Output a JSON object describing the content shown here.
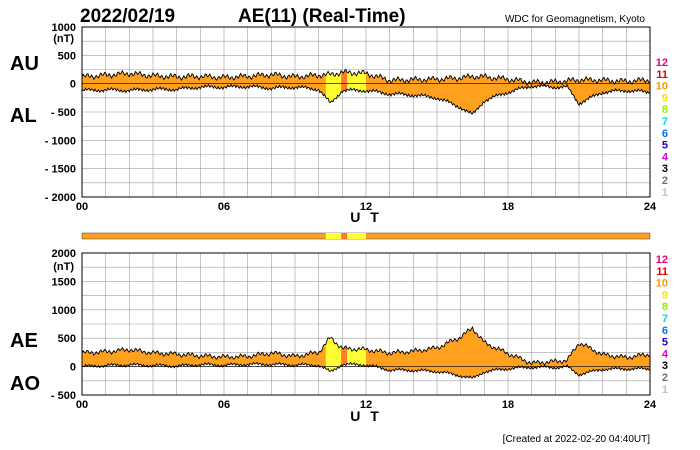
{
  "header": {
    "date": "2022/02/19",
    "title": "AE(11) (Real-Time)",
    "org": "WDC for Geomagnetism, Kyoto"
  },
  "footer": {
    "created": "[Created at 2022-02-20 04:40UT]"
  },
  "legend": {
    "items": [
      {
        "label": "12",
        "color": "#e8007a"
      },
      {
        "label": "11",
        "color": "#e00000"
      },
      {
        "label": "10",
        "color": "#ff9900"
      },
      {
        "label": "9",
        "color": "#f2e600"
      },
      {
        "label": "8",
        "color": "#99ee00"
      },
      {
        "label": "7",
        "color": "#00d9d9"
      },
      {
        "label": "6",
        "color": "#0070ff"
      },
      {
        "label": "5",
        "color": "#1a00c8"
      },
      {
        "label": "4",
        "color": "#d600d6"
      },
      {
        "label": "3",
        "color": "#000000"
      },
      {
        "label": "2",
        "color": "#707070"
      },
      {
        "label": "1",
        "color": "#c0c0c0"
      }
    ]
  },
  "colors": {
    "fill": "#ffa01e",
    "highlight": "#ffff33",
    "alert": "#ff7a30",
    "grid": "#a0a0a0"
  },
  "chart_data": [
    {
      "type": "area",
      "name": "AU-AL",
      "upper_label": "AU",
      "lower_label": "AL",
      "y_unit": "(nT)",
      "ylim": [
        -2000,
        1000
      ],
      "yticks": [
        "1000",
        "500",
        "0",
        "- 500",
        "- 1000",
        "- 1500",
        "- 2000"
      ],
      "xlabel": "U T",
      "xlim": [
        0,
        24
      ],
      "xticks": [
        "00",
        "06",
        "12",
        "18",
        "24"
      ],
      "grid": true,
      "x": [
        0,
        1,
        2,
        3,
        4,
        5,
        6,
        7,
        8,
        9,
        10,
        10.5,
        11,
        12,
        13,
        14,
        15,
        16,
        16.5,
        17,
        18,
        19,
        20,
        20.5,
        21,
        22,
        23,
        24
      ],
      "series": [
        {
          "name": "AU",
          "values": [
            120,
            150,
            180,
            140,
            120,
            130,
            110,
            130,
            160,
            120,
            150,
            160,
            200,
            180,
            60,
            70,
            80,
            100,
            130,
            120,
            80,
            20,
            30,
            50,
            70,
            60,
            40,
            70
          ]
        },
        {
          "name": "AL",
          "values": [
            -120,
            -110,
            -120,
            -100,
            -100,
            -60,
            -60,
            -50,
            -80,
            -60,
            -100,
            -350,
            -120,
            -120,
            -180,
            -200,
            -250,
            -420,
            -550,
            -300,
            -150,
            -40,
            -60,
            -60,
            -350,
            -150,
            -120,
            -150
          ]
        }
      ],
      "highlight_ranges": [
        [
          10.3,
          12.0
        ]
      ]
    },
    {
      "type": "area",
      "name": "AE-AO",
      "upper_label": "AE",
      "lower_label": "AO",
      "y_unit": "(nT)",
      "ylim": [
        -500,
        2000
      ],
      "yticks": [
        "2000",
        "1500",
        "1000",
        "500",
        "0",
        "- 500"
      ],
      "xlabel": "U T",
      "xlim": [
        0,
        24
      ],
      "xticks": [
        "00",
        "06",
        "12",
        "18",
        "24"
      ],
      "grid": true,
      "x": [
        0,
        1,
        2,
        3,
        4,
        5,
        6,
        7,
        8,
        9,
        10,
        10.5,
        11,
        12,
        13,
        14,
        15,
        16,
        16.5,
        17,
        18,
        19,
        20,
        20.5,
        21,
        22,
        23,
        24
      ],
      "series": [
        {
          "name": "AE",
          "values": [
            240,
            260,
            300,
            240,
            220,
            190,
            170,
            180,
            240,
            180,
            250,
            510,
            320,
            300,
            240,
            270,
            330,
            520,
            680,
            420,
            230,
            60,
            90,
            110,
            420,
            210,
            160,
            220
          ]
        },
        {
          "name": "AO",
          "values": [
            0,
            20,
            30,
            20,
            10,
            35,
            25,
            40,
            40,
            30,
            25,
            -95,
            40,
            30,
            -60,
            -65,
            -85,
            -160,
            -210,
            -90,
            -35,
            -10,
            -15,
            -5,
            -140,
            -45,
            -40,
            -40
          ]
        }
      ],
      "highlight_ranges": [
        [
          10.3,
          12.0
        ]
      ]
    }
  ]
}
